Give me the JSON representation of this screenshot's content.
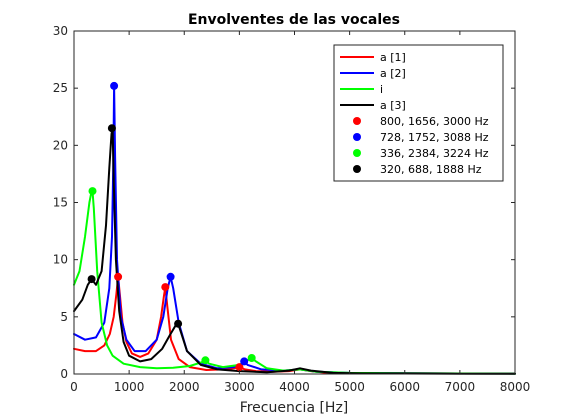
{
  "chart_data": {
    "type": "line",
    "title": "Envolventes de las vocales",
    "xlabel": "Frecuencia [Hz]",
    "ylabel": "",
    "xlim": [
      0,
      8000
    ],
    "ylim": [
      0,
      30
    ],
    "xticks": [
      0,
      1000,
      2000,
      3000,
      4000,
      5000,
      6000,
      7000,
      8000
    ],
    "yticks": [
      0,
      5,
      10,
      15,
      20,
      25,
      30
    ],
    "grid": false,
    "legend_position": "top-right",
    "series": [
      {
        "name": "a [1]",
        "color": "#ff0000",
        "x": [
          0,
          200,
          400,
          550,
          650,
          720,
          770,
          800,
          830,
          880,
          950,
          1050,
          1200,
          1350,
          1500,
          1580,
          1630,
          1656,
          1690,
          1760,
          1900,
          2100,
          2400,
          2700,
          2900,
          3000,
          3100,
          3300,
          3600,
          3900,
          4100,
          4300,
          4600,
          5000,
          6000,
          7000,
          8000
        ],
        "y": [
          2.2,
          2.0,
          2.0,
          2.5,
          3.5,
          5.0,
          7.0,
          8.5,
          7.0,
          4.5,
          2.8,
          1.8,
          1.5,
          1.8,
          3.0,
          5.0,
          6.8,
          7.6,
          6.0,
          3.0,
          1.3,
          0.6,
          0.35,
          0.4,
          0.5,
          0.6,
          0.4,
          0.25,
          0.2,
          0.25,
          0.4,
          0.25,
          0.1,
          0.08,
          0.05,
          0.04,
          0.03
        ]
      },
      {
        "name": "a [2]",
        "color": "#0000ff",
        "x": [
          0,
          200,
          400,
          550,
          640,
          690,
          715,
          728,
          745,
          780,
          850,
          950,
          1100,
          1300,
          1500,
          1620,
          1700,
          1752,
          1800,
          1900,
          2050,
          2300,
          2600,
          2900,
          3050,
          3088,
          3150,
          3400,
          3800,
          4100,
          4400,
          5000,
          6000,
          7000,
          8000
        ],
        "y": [
          3.5,
          3.0,
          3.2,
          4.5,
          7.5,
          12.0,
          19.0,
          25.2,
          19.0,
          10.0,
          5.0,
          3.0,
          2.0,
          2.0,
          3.0,
          5.0,
          7.5,
          8.5,
          7.5,
          4.5,
          2.0,
          0.9,
          0.5,
          0.6,
          0.9,
          1.1,
          0.8,
          0.4,
          0.3,
          0.4,
          0.2,
          0.1,
          0.06,
          0.04,
          0.03
        ]
      },
      {
        "name": "i",
        "color": "#00ff00",
        "x": [
          0,
          100,
          200,
          280,
          320,
          336,
          360,
          420,
          500,
          600,
          700,
          900,
          1200,
          1500,
          1800,
          2100,
          2300,
          2384,
          2450,
          2700,
          3000,
          3150,
          3224,
          3300,
          3500,
          3800,
          4100,
          4400,
          5000,
          6000,
          7000,
          8000
        ],
        "y": [
          7.8,
          9.0,
          12.0,
          15.0,
          16.0,
          16.0,
          14.5,
          9.0,
          4.5,
          2.5,
          1.6,
          0.9,
          0.6,
          0.5,
          0.55,
          0.7,
          1.0,
          1.2,
          0.9,
          0.6,
          0.8,
          1.2,
          1.4,
          1.1,
          0.5,
          0.3,
          0.4,
          0.2,
          0.1,
          0.06,
          0.04,
          0.03
        ]
      },
      {
        "name": "a [3]",
        "color": "#000000",
        "x": [
          0,
          150,
          250,
          320,
          400,
          500,
          580,
          640,
          680,
          700,
          720,
          760,
          820,
          900,
          1000,
          1200,
          1400,
          1600,
          1750,
          1850,
          1888,
          1930,
          2050,
          2300,
          2600,
          3000,
          3500,
          3900,
          4100,
          4300,
          4700,
          5200,
          6000,
          7000,
          8000
        ],
        "y": [
          5.5,
          6.5,
          7.8,
          8.3,
          7.8,
          9.0,
          13.0,
          18.0,
          21.0,
          21.5,
          17.0,
          10.0,
          5.5,
          2.8,
          1.6,
          1.1,
          1.3,
          2.2,
          3.5,
          4.3,
          4.4,
          3.8,
          2.0,
          0.8,
          0.4,
          0.25,
          0.15,
          0.3,
          0.5,
          0.3,
          0.1,
          0.05,
          0.04,
          0.03,
          0.02
        ]
      }
    ],
    "markers": [
      {
        "name": "800, 1656, 3000 Hz",
        "color": "#ff0000",
        "points": [
          [
            800,
            8.5
          ],
          [
            1656,
            7.6
          ],
          [
            3000,
            0.6
          ]
        ]
      },
      {
        "name": "728, 1752, 3088 Hz",
        "color": "#0000ff",
        "points": [
          [
            728,
            25.2
          ],
          [
            1752,
            8.5
          ],
          [
            3088,
            1.1
          ]
        ]
      },
      {
        "name": "336, 2384, 3224 Hz",
        "color": "#00ff00",
        "points": [
          [
            336,
            16.0
          ],
          [
            2384,
            1.2
          ],
          [
            3224,
            1.4
          ]
        ]
      },
      {
        "name": "320, 688, 1888 Hz",
        "color": "#000000",
        "points": [
          [
            320,
            8.3
          ],
          [
            688,
            21.5
          ],
          [
            1888,
            4.4
          ]
        ]
      }
    ]
  }
}
